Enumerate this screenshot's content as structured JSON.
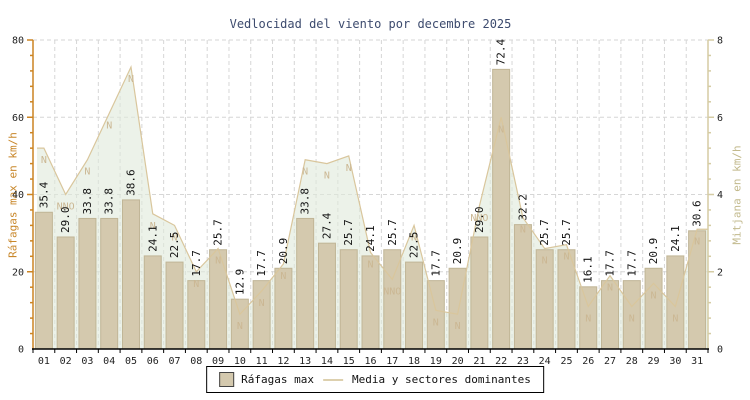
{
  "title": "Vedlocidad del viento por decembre 2025",
  "legend": {
    "gusts": "Ráfagas max",
    "mean": "Media y sectores dominantes"
  },
  "chart_data": {
    "type": "bar",
    "title": "Vedlocidad del viento por decembre 2025",
    "categories": [
      "01",
      "02",
      "03",
      "04",
      "05",
      "06",
      "07",
      "08",
      "09",
      "10",
      "11",
      "12",
      "13",
      "14",
      "15",
      "16",
      "17",
      "18",
      "19",
      "20",
      "21",
      "22",
      "23",
      "24",
      "25",
      "26",
      "27",
      "28",
      "29",
      "30",
      "31"
    ],
    "series": [
      {
        "name": "Ráfagas max",
        "type": "bar",
        "axis": "left",
        "values": [
          35.4,
          29.0,
          33.8,
          33.8,
          38.6,
          24.1,
          22.5,
          17.7,
          25.7,
          12.9,
          17.7,
          20.9,
          33.8,
          27.4,
          25.7,
          24.1,
          25.7,
          22.5,
          17.7,
          20.9,
          29.0,
          72.4,
          32.2,
          25.7,
          25.7,
          16.1,
          17.7,
          17.7,
          20.9,
          24.1,
          30.6
        ]
      },
      {
        "name": "Media y sectores dominantes",
        "type": "area",
        "axis": "right",
        "values": [
          5.2,
          4.0,
          4.9,
          6.1,
          7.3,
          3.5,
          3.2,
          2.0,
          2.6,
          0.9,
          1.5,
          2.2,
          4.9,
          4.8,
          5.0,
          2.5,
          1.8,
          3.2,
          1.0,
          0.9,
          3.7,
          6.0,
          3.4,
          2.6,
          2.7,
          1.1,
          1.9,
          1.1,
          1.7,
          1.1,
          3.1
        ],
        "point_labels": [
          "N",
          "NNO",
          "N",
          "N",
          "N",
          "N",
          "N",
          "N",
          "N",
          "N",
          "N",
          "N",
          "N",
          "N",
          "N",
          "N",
          "NNO",
          "N",
          "N",
          "N",
          "NNO",
          "N",
          "N",
          "N",
          "N",
          "N",
          "N",
          "N",
          "N",
          "N",
          "N"
        ]
      }
    ],
    "left_axis": {
      "label": "Ráfagas max en km/h",
      "range": [
        0,
        80
      ],
      "ticks": [
        0,
        20,
        40,
        60,
        80
      ],
      "minor_step": 4
    },
    "right_axis": {
      "label": "Mitjana en km/h",
      "range": [
        0,
        8
      ],
      "ticks": [
        0,
        2,
        4,
        6,
        8
      ],
      "minor_step": 0.4
    },
    "grid": "on",
    "legend_position": "bottom",
    "colors": {
      "bar_fill": "#d4c9ae",
      "bar_border": "#c0b596",
      "area_fill": "#dfeada",
      "area_line": "#d9c69c",
      "direction_label": "#cbb793",
      "value_label": "#111111",
      "left_axis": "#cc8422",
      "right_axis": "#d5cca4",
      "grid": "#d6d6d6",
      "x_axis": "#000000",
      "tick_label": "#222222",
      "title": "#3d4b6e"
    }
  }
}
